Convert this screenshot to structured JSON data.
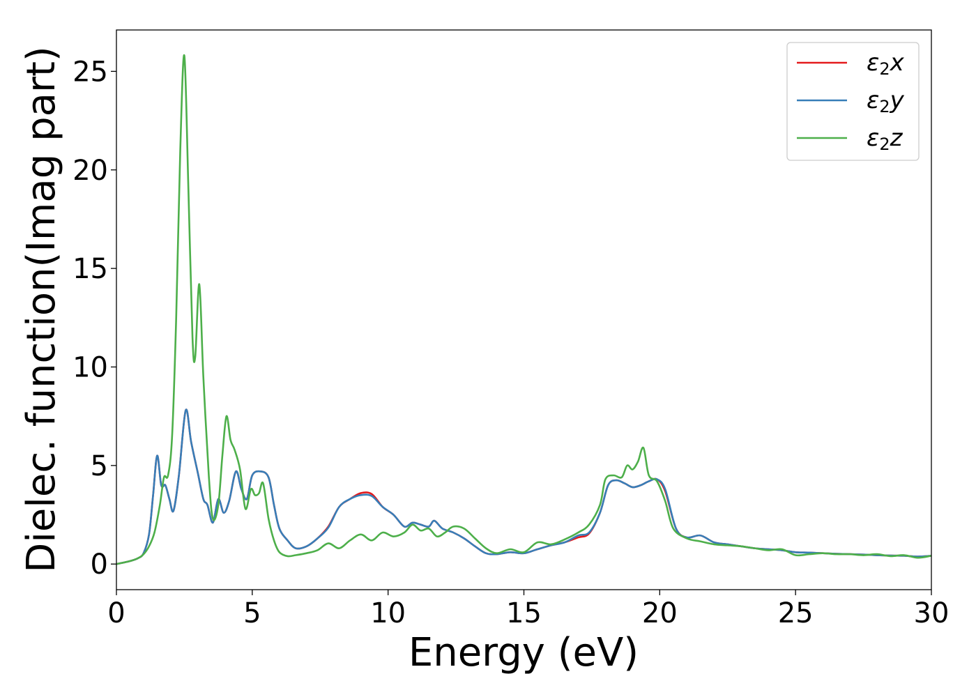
{
  "chart_data": {
    "type": "line",
    "xlabel": "Energy (eV)",
    "ylabel": "Dielec. function(Imag part)",
    "xlim": [
      0,
      30
    ],
    "ylim": [
      -1.3,
      27.1
    ],
    "x_ticks": [
      "0",
      "5",
      "10",
      "15",
      "20",
      "25",
      "30"
    ],
    "y_ticks": [
      "0",
      "5",
      "10",
      "15",
      "20",
      "25"
    ],
    "grid": false,
    "legend_position": "top-right",
    "series": [
      {
        "name": "ε2x",
        "legend_base": "ε",
        "legend_sub": "2",
        "legend_var": "x",
        "color": "#e41a1c",
        "x": [
          0,
          0.5,
          0.8,
          1.0,
          1.2,
          1.35,
          1.5,
          1.65,
          1.8,
          1.95,
          2.1,
          2.3,
          2.55,
          2.75,
          3.0,
          3.2,
          3.35,
          3.55,
          3.75,
          3.95,
          4.15,
          4.4,
          4.6,
          4.8,
          5.0,
          5.3,
          5.6,
          5.8,
          6.0,
          6.3,
          6.6,
          7.0,
          7.4,
          7.8,
          8.2,
          8.6,
          9.0,
          9.4,
          9.8,
          10.2,
          10.6,
          10.9,
          11.2,
          11.5,
          11.7,
          12.0,
          12.4,
          12.8,
          13.2,
          13.6,
          14.0,
          14.5,
          15.0,
          15.5,
          16.0,
          16.5,
          17.0,
          17.4,
          17.8,
          18.1,
          18.4,
          18.7,
          19.0,
          19.3,
          19.6,
          19.9,
          20.2,
          20.6,
          21.0,
          21.5,
          22.0,
          22.5,
          23.0,
          23.5,
          24.0,
          24.5,
          25.0,
          25.5,
          26.0,
          26.5,
          27.0,
          27.5,
          28.0,
          28.5,
          29.0,
          29.5,
          30.0
        ],
        "y": [
          0,
          0.15,
          0.3,
          0.55,
          1.5,
          3.5,
          5.5,
          4.0,
          4.0,
          3.3,
          2.7,
          4.5,
          7.8,
          6.2,
          4.6,
          3.3,
          3.0,
          2.1,
          3.3,
          2.6,
          3.2,
          4.7,
          3.8,
          3.3,
          4.5,
          4.7,
          4.4,
          3.0,
          1.8,
          1.2,
          0.8,
          0.9,
          1.3,
          1.9,
          2.9,
          3.3,
          3.6,
          3.55,
          2.9,
          2.5,
          1.9,
          2.1,
          2.0,
          1.9,
          2.2,
          1.8,
          1.6,
          1.3,
          0.9,
          0.55,
          0.5,
          0.6,
          0.55,
          0.75,
          0.95,
          1.1,
          1.35,
          1.55,
          2.6,
          4.0,
          4.25,
          4.1,
          3.9,
          4.0,
          4.2,
          4.3,
          3.7,
          1.8,
          1.35,
          1.45,
          1.1,
          1.0,
          0.9,
          0.8,
          0.75,
          0.7,
          0.6,
          0.58,
          0.55,
          0.52,
          0.5,
          0.48,
          0.45,
          0.43,
          0.42,
          0.38,
          0.42
        ]
      },
      {
        "name": "ε2y",
        "legend_base": "ε",
        "legend_sub": "2",
        "legend_var": "y",
        "color": "#377eb8",
        "x": [
          0,
          0.5,
          0.8,
          1.0,
          1.2,
          1.35,
          1.5,
          1.65,
          1.8,
          1.95,
          2.1,
          2.3,
          2.55,
          2.75,
          3.0,
          3.2,
          3.35,
          3.55,
          3.75,
          3.95,
          4.15,
          4.4,
          4.6,
          4.8,
          5.0,
          5.3,
          5.6,
          5.8,
          6.0,
          6.3,
          6.6,
          7.0,
          7.4,
          7.8,
          8.2,
          8.6,
          9.0,
          9.4,
          9.8,
          10.2,
          10.6,
          10.9,
          11.2,
          11.5,
          11.7,
          12.0,
          12.4,
          12.8,
          13.2,
          13.6,
          14.0,
          14.5,
          15.0,
          15.5,
          16.0,
          16.5,
          17.0,
          17.4,
          17.8,
          18.1,
          18.4,
          18.7,
          19.0,
          19.3,
          19.6,
          19.9,
          20.2,
          20.6,
          21.0,
          21.5,
          22.0,
          22.5,
          23.0,
          23.5,
          24.0,
          24.5,
          25.0,
          25.5,
          26.0,
          26.5,
          27.0,
          27.5,
          28.0,
          28.5,
          29.0,
          29.5,
          30.0
        ],
        "y": [
          0,
          0.15,
          0.3,
          0.55,
          1.5,
          3.5,
          5.5,
          4.0,
          4.0,
          3.3,
          2.7,
          4.5,
          7.8,
          6.2,
          4.6,
          3.3,
          3.0,
          2.1,
          3.3,
          2.6,
          3.2,
          4.7,
          3.8,
          3.3,
          4.5,
          4.7,
          4.4,
          3.0,
          1.8,
          1.2,
          0.8,
          0.9,
          1.3,
          1.85,
          2.9,
          3.3,
          3.5,
          3.45,
          2.9,
          2.5,
          1.9,
          2.1,
          2.0,
          1.9,
          2.2,
          1.8,
          1.6,
          1.3,
          0.9,
          0.55,
          0.5,
          0.6,
          0.55,
          0.75,
          0.95,
          1.1,
          1.45,
          1.6,
          2.6,
          4.0,
          4.25,
          4.1,
          3.9,
          4.0,
          4.2,
          4.3,
          3.8,
          1.8,
          1.35,
          1.45,
          1.1,
          1.0,
          0.9,
          0.8,
          0.75,
          0.7,
          0.6,
          0.58,
          0.55,
          0.52,
          0.5,
          0.48,
          0.45,
          0.43,
          0.42,
          0.38,
          0.42
        ]
      },
      {
        "name": "ε2z",
        "legend_base": "ε",
        "legend_sub": "2",
        "legend_var": "z",
        "color": "#4daf4a",
        "x": [
          0,
          0.5,
          0.8,
          1.0,
          1.2,
          1.4,
          1.6,
          1.75,
          1.9,
          2.05,
          2.2,
          2.35,
          2.5,
          2.65,
          2.8,
          2.9,
          3.05,
          3.2,
          3.4,
          3.55,
          3.75,
          3.9,
          4.05,
          4.2,
          4.35,
          4.55,
          4.75,
          4.95,
          5.1,
          5.25,
          5.4,
          5.6,
          5.8,
          6.0,
          6.3,
          6.6,
          7.0,
          7.4,
          7.8,
          8.2,
          8.6,
          9.0,
          9.4,
          9.8,
          10.2,
          10.6,
          10.9,
          11.2,
          11.5,
          11.8,
          12.1,
          12.4,
          12.8,
          13.2,
          13.6,
          14.0,
          14.5,
          15.0,
          15.5,
          16.0,
          16.5,
          17.0,
          17.4,
          17.8,
          18.0,
          18.3,
          18.6,
          18.8,
          19.0,
          19.2,
          19.4,
          19.6,
          19.9,
          20.2,
          20.5,
          21.0,
          21.5,
          22.0,
          22.5,
          23.0,
          23.5,
          24.0,
          24.5,
          25.0,
          25.5,
          26.0,
          26.5,
          27.0,
          27.5,
          28.0,
          28.5,
          29.0,
          29.5,
          30.0
        ],
        "y": [
          0,
          0.15,
          0.3,
          0.5,
          0.9,
          1.6,
          3.0,
          4.4,
          4.5,
          6.5,
          12.5,
          21.0,
          25.8,
          19.0,
          11.5,
          10.5,
          14.2,
          9.5,
          4.5,
          2.3,
          3.0,
          5.5,
          7.5,
          6.3,
          5.8,
          4.8,
          2.8,
          3.8,
          3.5,
          3.6,
          4.1,
          2.3,
          1.2,
          0.6,
          0.4,
          0.45,
          0.55,
          0.7,
          1.05,
          0.8,
          1.2,
          1.5,
          1.2,
          1.6,
          1.4,
          1.6,
          2.0,
          1.7,
          1.8,
          1.4,
          1.6,
          1.9,
          1.8,
          1.3,
          0.8,
          0.55,
          0.75,
          0.6,
          1.1,
          1.0,
          1.25,
          1.6,
          2.0,
          3.0,
          4.3,
          4.5,
          4.4,
          5.0,
          4.8,
          5.2,
          5.9,
          4.5,
          4.2,
          3.2,
          1.8,
          1.3,
          1.15,
          1.0,
          0.95,
          0.9,
          0.8,
          0.7,
          0.75,
          0.45,
          0.5,
          0.55,
          0.5,
          0.5,
          0.45,
          0.5,
          0.4,
          0.45,
          0.32,
          0.42
        ]
      }
    ]
  }
}
